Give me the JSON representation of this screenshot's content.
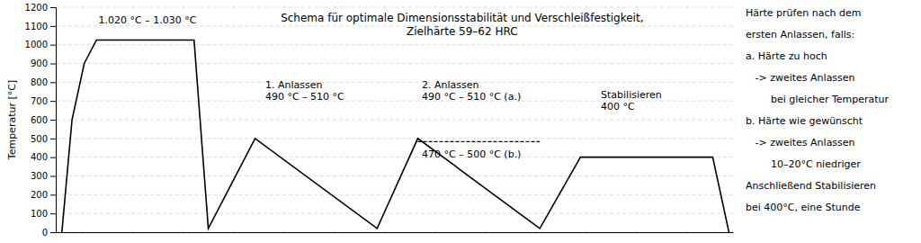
{
  "chart_data": {
    "type": "line",
    "title": "Schema für optimale Dimensionsstabilität und Verschleißfestigkeit,",
    "subtitle": "Zielhärte 59–62 HRC",
    "ylabel": "Temperatur [°C]",
    "xlim": [
      -0.3,
      33.0
    ],
    "ylim": [
      0,
      1200
    ],
    "yticks": [
      0,
      100,
      200,
      300,
      400,
      500,
      600,
      700,
      800,
      900,
      1000,
      1100,
      1200
    ],
    "grid": true,
    "tick_labels": "y",
    "series": [
      {
        "x": [
          0,
          0.5,
          0.5,
          1.1,
          1.1,
          1.7,
          1.7,
          6.5,
          7.2,
          7.2,
          9.5,
          9.5,
          15.5,
          15.5,
          17.5,
          17.5,
          23.5,
          23.5,
          25.5,
          25.5,
          32.0,
          32.8,
          32.8
        ],
        "values": [
          0,
          600,
          600,
          900,
          900,
          1025,
          1025,
          1025,
          20,
          20,
          500,
          500,
          20,
          20,
          500,
          500,
          20,
          20,
          400,
          400,
          400,
          0,
          0
        ],
        "color": "#000000",
        "line_style": "solid"
      },
      {
        "x": [
          17.5,
          23.5
        ],
        "values": [
          483,
          483
        ],
        "color": "#000000",
        "line_style": "dashed"
      }
    ],
    "annotations": [
      {
        "text": [
          "1.020 °C – 1.030 °C"
        ],
        "x": 1.8,
        "y": 1080
      },
      {
        "text": [
          "1. Anlassen",
          "490 °C – 510 °C"
        ],
        "x": 10.0,
        "y": 670
      },
      {
        "text": [
          "2. Anlassen",
          "490 °C – 510 °C (a.)"
        ],
        "x": 17.7,
        "y": 670
      },
      {
        "text": [
          "470 °C – 500 °C (b.)"
        ],
        "x": 17.7,
        "y": 448
      },
      {
        "text": [
          "Stabilisieren",
          "400 °C"
        ],
        "x": 26.5,
        "y": 620
      }
    ],
    "side_text": [
      "Härte prüfen nach dem",
      "ersten Anlassen, falls:",
      "a. Härte zu hoch",
      "   -> zweites Anlassen",
      "        bei gleicher Temperatur",
      "b. Härte wie gewünscht",
      "   -> zweites Anlassen",
      "        10–20°C niedriger",
      "Anschließend Stabilisieren",
      "bei 400°C, eine Stunde"
    ]
  }
}
